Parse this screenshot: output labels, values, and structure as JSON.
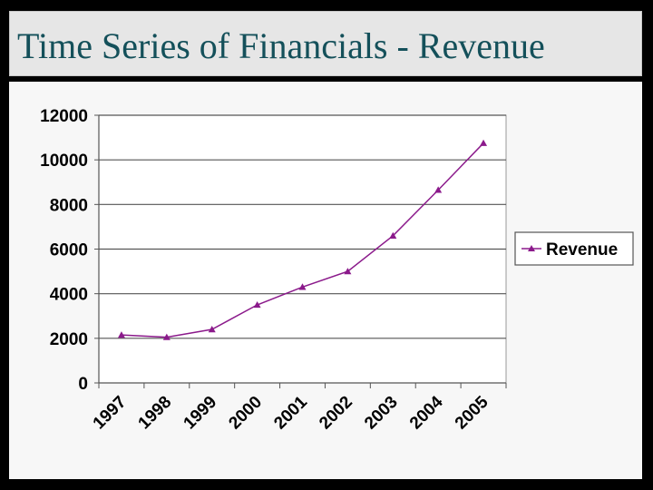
{
  "slide": {
    "title": "Time Series of Financials - Revenue"
  },
  "chart_data": {
    "type": "line",
    "title": "",
    "xlabel": "",
    "ylabel": "",
    "x": [
      "1997",
      "1998",
      "1999",
      "2000",
      "2001",
      "2002",
      "2003",
      "2004",
      "2005"
    ],
    "series": [
      {
        "name": "Revenue",
        "values": [
          2150,
          2050,
          2400,
          3500,
          4300,
          5000,
          6600,
          8650,
          10750
        ],
        "color": "#8b1a8b",
        "marker": "triangle"
      }
    ],
    "ylim": [
      0,
      12000
    ],
    "yticks": [
      "0",
      "2000",
      "4000",
      "6000",
      "8000",
      "10000",
      "12000"
    ],
    "grid": true,
    "legend_position": "right"
  }
}
